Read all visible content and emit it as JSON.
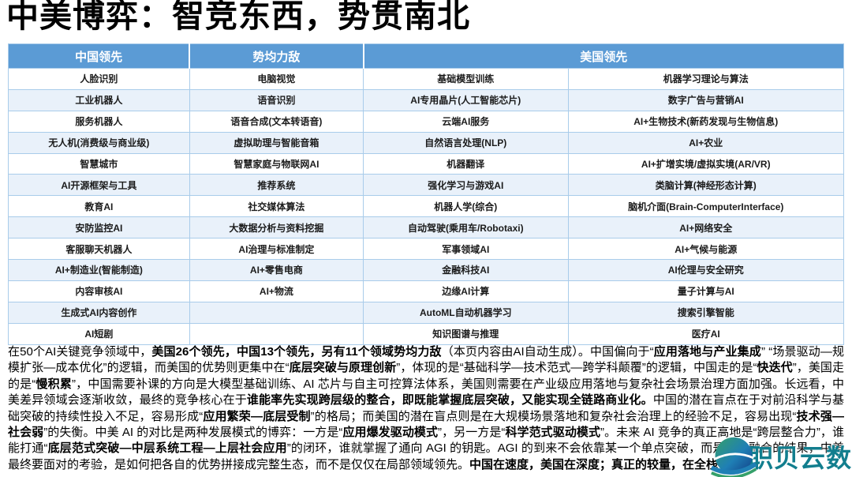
{
  "title": "中美博弈：智竞东西，势贯南北",
  "colors": {
    "header_bg": "#5B9BD5",
    "stripe_bg": "#E9F1FA",
    "border": "#A9CCEA",
    "watermark": "#127E8E"
  },
  "table": {
    "headers": [
      {
        "label": "中国领先",
        "colspan": 1
      },
      {
        "label": "势均力敌",
        "colspan": 1
      },
      {
        "label": "美国领先",
        "colspan": 2
      }
    ],
    "rows": [
      [
        "人脸识别",
        "电脑视觉",
        "基础模型训练",
        "机器学习理论与算法"
      ],
      [
        "工业机器人",
        "语音识别",
        "AI专用晶片(人工智能芯片)",
        "数字广告与营销AI"
      ],
      [
        "服务机器人",
        "语音合成(文本转语音)",
        "云端AI服务",
        "AI+生物技术(新药发现与生物信息)"
      ],
      [
        "无人机(消费级与商业级)",
        "虚拟助理与智能音箱",
        "自然语言处理(NLP)",
        "AI+农业"
      ],
      [
        "智慧城市",
        "智慧家庭与物联网AI",
        "机器翻译",
        "AI+扩增实境/虚拟实境(AR/VR)"
      ],
      [
        "AI开源框架与工具",
        "推荐系统",
        "强化学习与游戏AI",
        "类脑计算(神经形态计算)"
      ],
      [
        "教育AI",
        "社交媒体算法",
        "机器人学(综合)",
        "脑机介面(Brain-ComputerInterface)"
      ],
      [
        "安防监控AI",
        "大数据分析与资料挖掘",
        "自动驾驶(乘用车/Robotaxi)",
        "AI+网络安全"
      ],
      [
        "客服聊天机器人",
        "AI治理与标准制定",
        "军事领域AI",
        "AI+气候与能源"
      ],
      [
        "AI+制造业(智能制造)",
        "AI+零售电商",
        "金融科技AI",
        "AI伦理与安全研究"
      ],
      [
        "内容审核AI",
        "AI+物流",
        "边缘AI计算",
        "量子计算与AI"
      ],
      [
        "生成式AI内容创作",
        "",
        "AutoML自动机器学习",
        "搜索引擎智能"
      ],
      [
        "AI短剧",
        "",
        "知识图谱与推理",
        "医疗AI"
      ]
    ]
  },
  "summary": {
    "segments": [
      {
        "text": "在50个AI关键竞争领域中，",
        "bold": false
      },
      {
        "text": "美国26个领先，中国13个领先，另有11个领域势均力敌",
        "bold": true
      },
      {
        "text": "（本页内容由AI自动生成）。中国偏向于“",
        "bold": false
      },
      {
        "text": "应用落地与产业集成",
        "bold": true
      },
      {
        "text": "” “场景驱动—规模扩张—成本优化”的逻辑，而美国的优势则更集中在“",
        "bold": false
      },
      {
        "text": "底层突破与原理创新",
        "bold": true
      },
      {
        "text": "”，体现的是“基础科学—技术范式—跨学科颠覆”的逻辑，中国走的是“",
        "bold": false
      },
      {
        "text": "快迭代",
        "bold": true
      },
      {
        "text": "”，美国走的是“",
        "bold": false
      },
      {
        "text": "慢积累",
        "bold": true
      },
      {
        "text": "”，中国需要补课的方向是大模型基础训练、AI 芯片与自主可控算法体系，美国则需要在产业级应用落地与复杂社会场景治理方面加强。长远看，中美差异领域会逐渐收敛，最终的竞争核心在于",
        "bold": false
      },
      {
        "text": "谁能率先实现跨层级的整合，即既能掌握底层突破，又能实现全链路商业化。",
        "bold": true
      },
      {
        "text": "中国的潜在盲点在于对前沿科学与基础突破的持续性投入不足，容易形成“",
        "bold": false
      },
      {
        "text": "应用繁荣—底层受制",
        "bold": true
      },
      {
        "text": "”的格局；而美国的潜在盲点则是在大规模场景落地和复杂社会治理上的经验不足，容易出现“",
        "bold": false
      },
      {
        "text": "技术强—社会弱",
        "bold": true
      },
      {
        "text": "”的失衡。中美 AI 的对比是两种发展模式的博弈：一方是“",
        "bold": false
      },
      {
        "text": "应用爆发驱动模式",
        "bold": true
      },
      {
        "text": "”，另一方是“",
        "bold": false
      },
      {
        "text": "科学范式驱动模式",
        "bold": true
      },
      {
        "text": "”。未来 AI 竞争的真正高地是“跨层整合力”，谁能打通“",
        "bold": false
      },
      {
        "text": "底层范式突破—中层系统工程—上层社会应用",
        "bold": true
      },
      {
        "text": "”的闭环，谁就掌握了通向 AGI 的钥匙。AGI 的到来不会依靠某一个单点突破，而是全栈融合的结果，中美最终要面对的考验，是如何把各自的优势拼接成完整生态，而不是仅仅在局部领域领先。",
        "bold": false
      },
      {
        "text": "中国在速度，美国在深度；真正的较量，在全栈",
        "bold": true
      }
    ]
  },
  "watermark": {
    "text": "职贝云数"
  }
}
